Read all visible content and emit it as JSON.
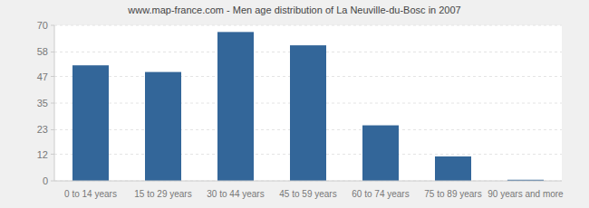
{
  "chart_data": {
    "type": "bar",
    "title": "www.map-france.com - Men age distribution of La Neuville-du-Bosc in 2007",
    "categories": [
      "0 to 14 years",
      "15 to 29 years",
      "30 to 44 years",
      "45 to 59 years",
      "60 to 74 years",
      "75 to 89 years",
      "90 years and more"
    ],
    "values": [
      52,
      49,
      67,
      61,
      25,
      11,
      0.5
    ],
    "color": "#336699",
    "ylim": [
      0,
      70
    ],
    "yticks": [
      0,
      12,
      23,
      35,
      47,
      58,
      70
    ],
    "grid": true
  }
}
